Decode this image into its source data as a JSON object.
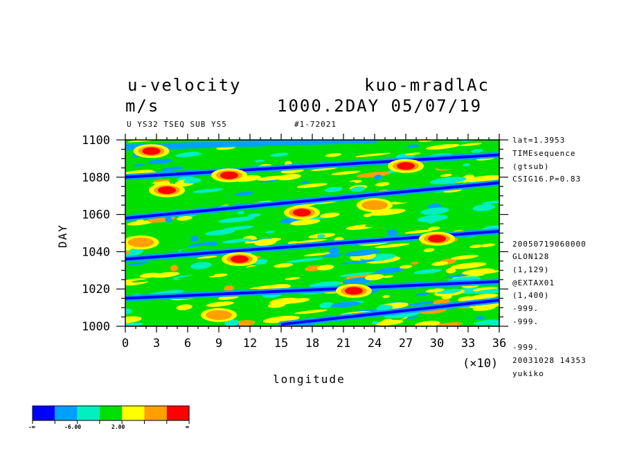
{
  "header": {
    "variable": "u-velocity",
    "units": "m/s",
    "run": "kuo-mradlAc",
    "time": "1000.2DAY 05/07/19",
    "sub_left": "U YS32 TSEQ SUB YS5",
    "sub_mid": "#1-72021"
  },
  "side_info": [
    "lat=1.3953",
    "TIMEsequence",
    "(gtsub)",
    "CSIG16.P=0.83"
  ],
  "side_info2": [
    "20050719060000",
    "GLON128",
    "(1,129)",
    "@EXTAX01",
    "(1,400)",
    "-999.",
    "-999.",
    "-999.",
    "20031028  14353",
    "yukiko"
  ],
  "colorbar": {
    "colors": [
      "#0000ff",
      "#00a0ff",
      "#00f0c0",
      "#00e000",
      "#ffff00",
      "#ffa000",
      "#ff0000"
    ],
    "labels": [
      "-∞",
      "-6.00",
      "2.00",
      "∞"
    ]
  },
  "chart_data": {
    "type": "heatmap",
    "title": "u-velocity",
    "xlabel": "longitude",
    "ylabel": "DAY",
    "x_multiplier": "(×10)",
    "xlim": [
      0,
      36
    ],
    "ylim": [
      1000,
      1100
    ],
    "xticks": [
      "0",
      "3",
      "6",
      "9",
      "12",
      "15",
      "18",
      "21",
      "24",
      "27",
      "30",
      "33",
      "36"
    ],
    "yticks": [
      "1000",
      "1020",
      "1040",
      "1060",
      "1080",
      "1100"
    ],
    "bands": [
      {
        "x0": 0,
        "y0": 1015,
        "x1": 36,
        "y1": 1024,
        "level": 0
      },
      {
        "x0": 0,
        "y0": 1036,
        "x1": 36,
        "y1": 1051,
        "level": 0
      },
      {
        "x0": 0,
        "y0": 1058,
        "x1": 36,
        "y1": 1077,
        "level": 0
      },
      {
        "x0": 0,
        "y0": 1080,
        "x1": 36,
        "y1": 1092,
        "level": 0
      },
      {
        "x0": 15,
        "y0": 1001,
        "x1": 36,
        "y1": 1014,
        "level": 0
      },
      {
        "x0": 0,
        "y0": 1096,
        "x1": 24,
        "y1": 1100,
        "level": 1
      }
    ],
    "hotspots": [
      {
        "x": 2.5,
        "y": 1094,
        "level": 6
      },
      {
        "x": 4,
        "y": 1073,
        "level": 6
      },
      {
        "x": 10,
        "y": 1081,
        "level": 6
      },
      {
        "x": 17,
        "y": 1061,
        "level": 6
      },
      {
        "x": 11,
        "y": 1036,
        "level": 6
      },
      {
        "x": 22,
        "y": 1019,
        "level": 6
      },
      {
        "x": 27,
        "y": 1086,
        "level": 6
      },
      {
        "x": 30,
        "y": 1047,
        "level": 6
      },
      {
        "x": 1.5,
        "y": 1045,
        "level": 5
      },
      {
        "x": 9,
        "y": 1006,
        "level": 5
      },
      {
        "x": 24,
        "y": 1065,
        "level": 5
      }
    ]
  }
}
